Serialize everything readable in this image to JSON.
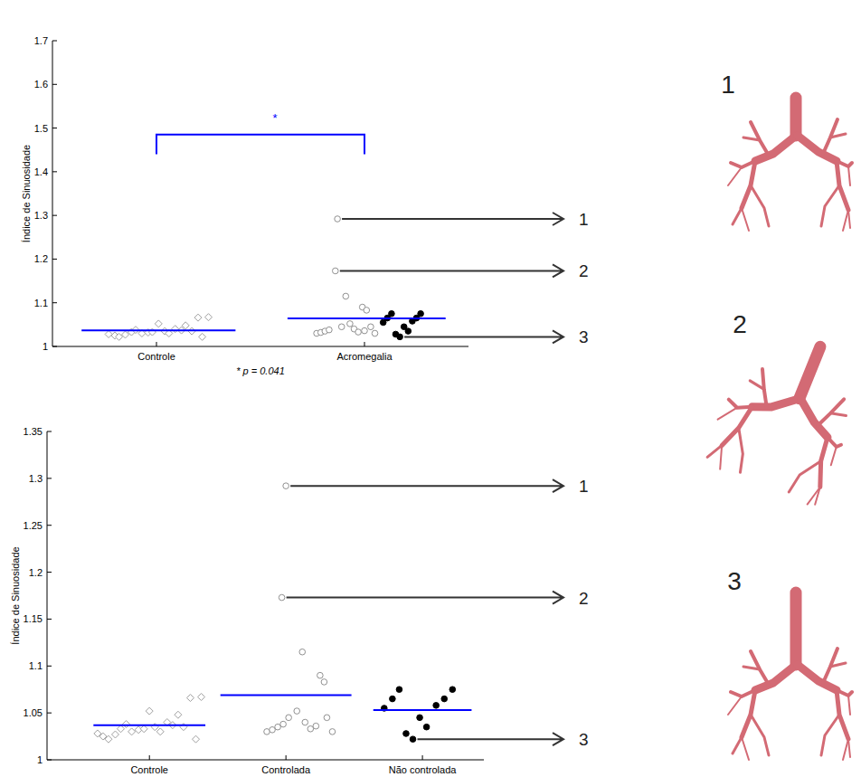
{
  "chart_data": [
    {
      "type": "scatter",
      "y_label": "Índice de Sinuosidade",
      "xlim": [
        0.5,
        2.5
      ],
      "ylim": [
        1,
        1.7
      ],
      "xticks": [
        {
          "value": 1,
          "label": "Controle"
        },
        {
          "value": 2,
          "label": "Acromegalia"
        }
      ],
      "yticks": [
        1,
        1.1,
        1.2,
        1.3,
        1.4,
        1.5,
        1.6,
        1.7
      ],
      "series": [
        {
          "marker": "diamond",
          "color": "#a0a0a0",
          "x": [
            0.77,
            0.8,
            0.82,
            0.85,
            0.88,
            0.9,
            0.93,
            0.96,
            0.98,
            1.01,
            1.04,
            1.06,
            1.09,
            1.12,
            1.14,
            1.17,
            1.2,
            1.22,
            1.25
          ],
          "values": [
            1.028,
            1.025,
            1.022,
            1.027,
            1.033,
            1.038,
            1.03,
            1.032,
            1.033,
            1.052,
            1.035,
            1.03,
            1.04,
            1.037,
            1.048,
            1.035,
            1.066,
            1.022,
            1.067
          ]
        },
        {
          "marker": "circle",
          "color": "#909090",
          "x": [
            1.87,
            1.86,
            1.91,
            1.99,
            2.01,
            1.77,
            1.79,
            1.81,
            1.83,
            1.89,
            1.93,
            1.95,
            1.97,
            2.0,
            2.03,
            2.05
          ],
          "values": [
            1.292,
            1.173,
            1.115,
            1.09,
            1.083,
            1.03,
            1.032,
            1.035,
            1.038,
            1.045,
            1.052,
            1.04,
            1.033,
            1.036,
            1.045,
            1.03
          ]
        },
        {
          "marker": "filled-circle",
          "color": "#000000",
          "x": [
            2.09,
            2.11,
            2.13,
            2.15,
            2.17,
            2.19,
            2.21,
            2.23,
            2.25,
            2.27
          ],
          "values": [
            1.055,
            1.065,
            1.075,
            1.028,
            1.022,
            1.045,
            1.035,
            1.058,
            1.065,
            1.075
          ]
        },
        {
          "type": "line",
          "color": "#0000ff",
          "x": [
            0.64,
            1.38
          ],
          "values": [
            1.037,
            1.037
          ]
        },
        {
          "type": "line",
          "color": "#0000ff",
          "x": [
            1.63,
            2.39
          ],
          "values": [
            1.064,
            1.064
          ]
        }
      ],
      "bracket": {
        "x": [
          1,
          2
        ],
        "y": [
          1.44,
          1.485
        ],
        "label": "*",
        "color": "#0000ff"
      },
      "note": "* p = 0.041",
      "callouts": [
        {
          "label": "1",
          "x": 1.87,
          "y": 1.292
        },
        {
          "label": "2",
          "x": 1.86,
          "y": 1.173
        },
        {
          "label": "3",
          "x": 2.17,
          "y": 1.022
        }
      ]
    },
    {
      "type": "scatter",
      "y_label": "Índice de Sinuosidade",
      "xlim": [
        0.25,
        3.45
      ],
      "ylim": [
        1,
        1.35
      ],
      "xticks": [
        {
          "value": 1,
          "label": "Controle"
        },
        {
          "value": 2,
          "label": "Controlada"
        },
        {
          "value": 3,
          "label": "Não controlada"
        }
      ],
      "yticks": [
        1,
        1.05,
        1.1,
        1.15,
        1.2,
        1.25,
        1.3,
        1.35
      ],
      "series": [
        {
          "marker": "diamond",
          "color": "#a0a0a0",
          "x": [
            0.62,
            0.66,
            0.7,
            0.75,
            0.79,
            0.83,
            0.87,
            0.92,
            0.96,
            1.0,
            1.04,
            1.08,
            1.13,
            1.17,
            1.21,
            1.25,
            1.3,
            1.34,
            1.38
          ],
          "values": [
            1.028,
            1.025,
            1.022,
            1.027,
            1.033,
            1.038,
            1.03,
            1.032,
            1.033,
            1.052,
            1.035,
            1.03,
            1.04,
            1.037,
            1.048,
            1.035,
            1.066,
            1.022,
            1.067
          ]
        },
        {
          "marker": "circle",
          "color": "#909090",
          "x": [
            2.0,
            1.97,
            2.12,
            2.25,
            2.28,
            1.86,
            1.9,
            1.94,
            1.98,
            2.02,
            2.08,
            2.14,
            2.18,
            2.22,
            2.3,
            2.34
          ],
          "values": [
            1.292,
            1.173,
            1.115,
            1.09,
            1.083,
            1.03,
            1.032,
            1.035,
            1.038,
            1.045,
            1.052,
            1.04,
            1.033,
            1.036,
            1.045,
            1.03
          ]
        },
        {
          "marker": "filled-circle",
          "color": "#000000",
          "x": [
            2.72,
            2.78,
            2.83,
            2.88,
            2.93,
            2.98,
            3.03,
            3.1,
            3.16,
            3.22
          ],
          "values": [
            1.055,
            1.065,
            1.075,
            1.028,
            1.022,
            1.045,
            1.035,
            1.058,
            1.065,
            1.075
          ]
        },
        {
          "type": "line",
          "color": "#0000ff",
          "x": [
            0.59,
            1.41
          ],
          "values": [
            1.037,
            1.037
          ]
        },
        {
          "type": "line",
          "color": "#0000ff",
          "x": [
            1.52,
            2.48
          ],
          "values": [
            1.069,
            1.069
          ]
        },
        {
          "type": "line",
          "color": "#0000ff",
          "x": [
            2.64,
            3.36
          ],
          "values": [
            1.053,
            1.053
          ]
        }
      ],
      "callouts": [
        {
          "label": "1",
          "x": 2.0,
          "y": 1.292
        },
        {
          "label": "2",
          "x": 1.97,
          "y": 1.173
        },
        {
          "label": "3",
          "x": 2.93,
          "y": 1.022
        }
      ]
    }
  ],
  "airway_labels": [
    "1",
    "2",
    "3"
  ]
}
